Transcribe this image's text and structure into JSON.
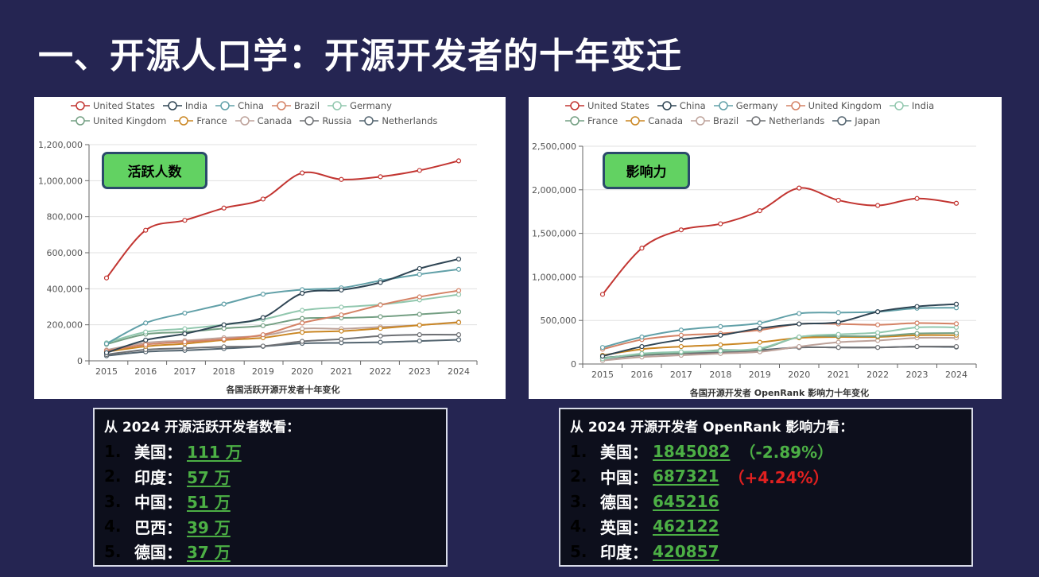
{
  "title": "一、开源人口学：开源开发者的十年变迁",
  "left_chart": {
    "badge": "活跃人数"
  },
  "right_chart": {
    "badge": "影响力"
  },
  "chart_data": [
    {
      "type": "line",
      "title": "各国活跃开源开发者十年变化",
      "xlabel": "各国活跃开源开发者十年变化",
      "ylabel": "",
      "x": [
        "2015",
        "2016",
        "2017",
        "2018",
        "2019",
        "2020",
        "2021",
        "2022",
        "2023",
        "2024"
      ],
      "ylim": [
        0,
        1200000
      ],
      "yticks": [
        "0",
        "200,000",
        "400,000",
        "600,000",
        "800,000",
        "1,000,000",
        "1,200,000"
      ],
      "grid": true,
      "legend": "top",
      "series": [
        {
          "name": "United States",
          "color": "#c23531",
          "values": [
            460000,
            725000,
            780000,
            848000,
            898000,
            1043000,
            1007000,
            1022000,
            1057000,
            1110000
          ]
        },
        {
          "name": "India",
          "color": "#2f4554",
          "values": [
            45000,
            115000,
            150000,
            200000,
            240000,
            375000,
            393000,
            435000,
            512000,
            565000
          ]
        },
        {
          "name": "China",
          "color": "#61a0a8",
          "values": [
            95000,
            210000,
            265000,
            315000,
            370000,
            395000,
            405000,
            445000,
            480000,
            508000
          ]
        },
        {
          "name": "Brazil",
          "color": "#d48265",
          "values": [
            55000,
            90000,
            105000,
            120000,
            145000,
            210000,
            255000,
            310000,
            355000,
            390000
          ]
        },
        {
          "name": "Germany",
          "color": "#91c7ae",
          "values": [
            100000,
            160000,
            178000,
            200000,
            230000,
            280000,
            298000,
            312000,
            338000,
            368000
          ]
        },
        {
          "name": "United Kingdom",
          "color": "#749f83",
          "values": [
            92000,
            148000,
            160000,
            180000,
            195000,
            235000,
            238000,
            245000,
            258000,
            272000
          ]
        },
        {
          "name": "France",
          "color": "#ca8622",
          "values": [
            50000,
            80000,
            95000,
            115000,
            128000,
            158000,
            165000,
            180000,
            198000,
            213000
          ]
        },
        {
          "name": "Canada",
          "color": "#bda29a",
          "values": [
            60000,
            100000,
            112000,
            128000,
            140000,
            178000,
            178000,
            188000,
            198000,
            215000
          ]
        },
        {
          "name": "Russia",
          "color": "#6e7074",
          "values": [
            35000,
            62000,
            70000,
            78000,
            82000,
            108000,
            120000,
            138000,
            145000,
            145000
          ]
        },
        {
          "name": "Netherlands",
          "color": "#546570",
          "values": [
            28000,
            50000,
            58000,
            68000,
            80000,
            97000,
            100000,
            103000,
            110000,
            117000
          ]
        }
      ]
    },
    {
      "type": "line",
      "title": "各国开源开发者 OpenRank 影响力十年变化",
      "xlabel": "各国开源开发者 OpenRank 影响力十年变化",
      "ylabel": "",
      "x": [
        "2015",
        "2016",
        "2017",
        "2018",
        "2019",
        "2020",
        "2021",
        "2022",
        "2023",
        "2024"
      ],
      "ylim": [
        0,
        2500000
      ],
      "yticks": [
        "0",
        "500,000",
        "1,000,000",
        "1,500,000",
        "2,000,000",
        "2,500,000"
      ],
      "grid": true,
      "legend": "top",
      "series": [
        {
          "name": "United States",
          "color": "#c23531",
          "values": [
            800000,
            1330000,
            1540000,
            1610000,
            1760000,
            2020000,
            1880000,
            1820000,
            1900000,
            1845082
          ]
        },
        {
          "name": "China",
          "color": "#2f4554",
          "values": [
            90000,
            200000,
            280000,
            330000,
            410000,
            460000,
            480000,
            600000,
            660000,
            687321
          ]
        },
        {
          "name": "Germany",
          "color": "#61a0a8",
          "values": [
            190000,
            310000,
            390000,
            430000,
            470000,
            580000,
            590000,
            600000,
            640000,
            645216
          ]
        },
        {
          "name": "United Kingdom",
          "color": "#d48265",
          "values": [
            170000,
            280000,
            330000,
            350000,
            390000,
            460000,
            460000,
            450000,
            470000,
            462122
          ]
        },
        {
          "name": "India",
          "color": "#91c7ae",
          "values": [
            60000,
            120000,
            140000,
            150000,
            180000,
            310000,
            340000,
            360000,
            420000,
            420857
          ]
        },
        {
          "name": "France",
          "color": "#749f83",
          "values": [
            70000,
            110000,
            130000,
            160000,
            170000,
            310000,
            320000,
            320000,
            350000,
            355000
          ]
        },
        {
          "name": "Canada",
          "color": "#ca8622",
          "values": [
            100000,
            170000,
            200000,
            220000,
            250000,
            300000,
            310000,
            310000,
            330000,
            330000
          ]
        },
        {
          "name": "Brazil",
          "color": "#bda29a",
          "values": [
            40000,
            80000,
            100000,
            120000,
            140000,
            200000,
            250000,
            270000,
            300000,
            300000
          ]
        },
        {
          "name": "Netherlands",
          "color": "#6e7074",
          "values": [
            60000,
            100000,
            120000,
            130000,
            150000,
            190000,
            190000,
            190000,
            200000,
            200000
          ]
        },
        {
          "name": "Japan",
          "color": "#546570",
          "values": [
            70000,
            110000,
            130000,
            140000,
            160000,
            190000,
            190000,
            190000,
            200000,
            195000
          ]
        }
      ]
    }
  ],
  "left_box": {
    "heading": "从 2024 开源活跃开发者数看：",
    "items": [
      {
        "n": "1.",
        "country": "美国：",
        "value": "111 万"
      },
      {
        "n": "2.",
        "country": "印度：",
        "value": "57 万"
      },
      {
        "n": "3.",
        "country": "中国：",
        "value": "51 万"
      },
      {
        "n": "4.",
        "country": "巴西：",
        "value": "39 万"
      },
      {
        "n": "5.",
        "country": "德国：",
        "value": "37 万"
      }
    ]
  },
  "right_box": {
    "heading": "从 2024 开源开发者 OpenRank 影响力看：",
    "items": [
      {
        "n": "1.",
        "country": "美国：",
        "value": "1845082",
        "change": "（-2.89%）",
        "change_color": "#4caf45"
      },
      {
        "n": "2.",
        "country": "中国：",
        "value": "687321",
        "change": "（+4.24%）",
        "change_color": "#e02020"
      },
      {
        "n": "3.",
        "country": "德国：",
        "value": "645216"
      },
      {
        "n": "4.",
        "country": "英国：",
        "value": "462122"
      },
      {
        "n": "5.",
        "country": "印度：",
        "value": "420857"
      }
    ]
  }
}
